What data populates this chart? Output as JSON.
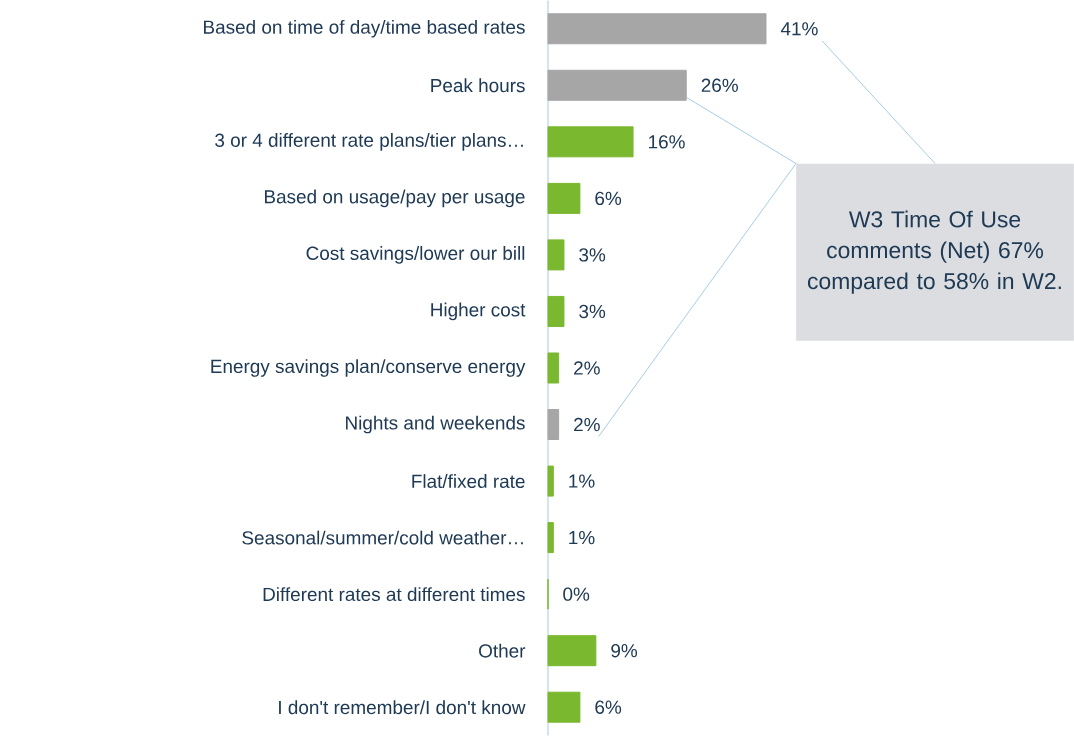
{
  "chart_data": {
    "type": "bar",
    "orientation": "horizontal",
    "categories": [
      "Based on time of day/time based rates",
      "Peak hours",
      "3 or 4 different rate plans/tier plans…",
      "Based on usage/pay per usage",
      "Cost savings/lower our bill",
      "Higher cost",
      "Energy savings plan/conserve energy",
      "Nights and weekends",
      "Flat/fixed rate",
      "Seasonal/summer/cold weather…",
      "Different rates at different times",
      "Other",
      "I don't remember/I don't know"
    ],
    "values": [
      41,
      26,
      16,
      6,
      3,
      3,
      2,
      2,
      1,
      1,
      0,
      9,
      6
    ],
    "value_labels": [
      "41%",
      "26%",
      "16%",
      "6%",
      "3%",
      "3%",
      "2%",
      "2%",
      "1%",
      "1%",
      "0%",
      "9%",
      "6%"
    ],
    "colors": [
      "#a6a6a6",
      "#a6a6a6",
      "#7ab82f",
      "#7ab82f",
      "#7ab82f",
      "#7ab82f",
      "#7ab82f",
      "#a6a6a6",
      "#7ab82f",
      "#7ab82f",
      "#7ab82f",
      "#7ab82f",
      "#7ab82f"
    ],
    "annotations": [
      "W3 Time Of Use comments (Net) 67% compared to 58% in W2."
    ]
  }
}
